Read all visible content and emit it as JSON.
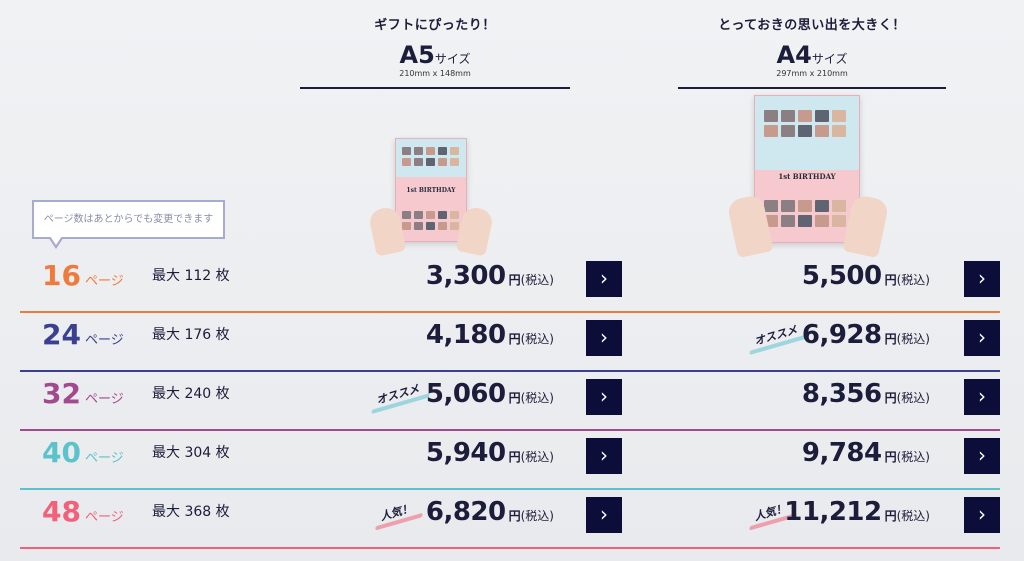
{
  "sizes": {
    "a5": {
      "tagline": "ギフトにぴったり！",
      "size": "A5",
      "suffix": "サイズ",
      "dims": "210mm x 148mm",
      "book_title": "1st BIRTHDAY"
    },
    "a4": {
      "tagline": "とっておきの思い出を大きく！",
      "size": "A4",
      "suffix": "サイズ",
      "dims": "297mm x 210mm",
      "book_title": "1st BIRTHDAY"
    }
  },
  "note": "ページ数はあとからでも変更できます",
  "labels": {
    "pages_unit": "ページ",
    "max_prefix": "最大",
    "photos_unit": "枚",
    "yen": "円",
    "tax": "(税込)",
    "button_glyph": "›"
  },
  "badges": {
    "recommended": "オススメ",
    "popular": "人気！"
  },
  "colors": {
    "p16": "#f07a3c",
    "p24": "#3a3f8f",
    "p32": "#a34a8f",
    "p40": "#5cc2cc",
    "p48": "#f2607a",
    "button": "#0d0d3a"
  },
  "rows": [
    {
      "pages": "16",
      "max": "112",
      "a5": "3,300",
      "a4": "5,500"
    },
    {
      "pages": "24",
      "max": "176",
      "a5": "4,180",
      "a4": "6,928"
    },
    {
      "pages": "32",
      "max": "240",
      "a5": "5,060",
      "a4": "8,356"
    },
    {
      "pages": "40",
      "max": "304",
      "a5": "5,940",
      "a4": "9,784"
    },
    {
      "pages": "48",
      "max": "368",
      "a5": "6,820",
      "a4": "11,212"
    }
  ]
}
